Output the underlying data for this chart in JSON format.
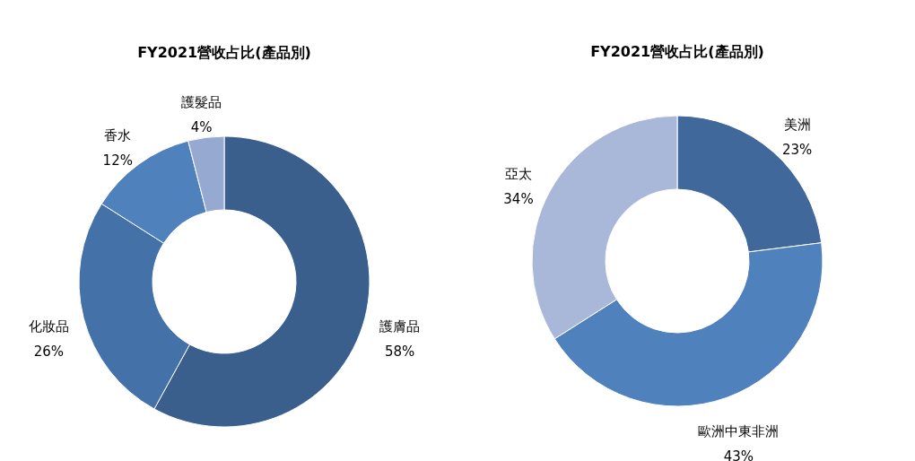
{
  "chart_data": [
    {
      "type": "donut",
      "title": "FY2021營收占比(產品別)",
      "categories": [
        "護膚品",
        "化妝品",
        "香水",
        "護髮品"
      ],
      "values": [
        58,
        26,
        12,
        4
      ],
      "value_labels": [
        "58%",
        "26%",
        "12%",
        "4%"
      ],
      "colors": [
        "#3b5f8c",
        "#4472a8",
        "#4f81bd",
        "#95a9d1"
      ]
    },
    {
      "type": "donut",
      "title": "FY2021營收占比(產品別)",
      "categories": [
        "美洲",
        "歐洲中東非洲",
        "亞太"
      ],
      "values": [
        23,
        43,
        34
      ],
      "value_labels": [
        "23%",
        "43%",
        "34%"
      ],
      "colors": [
        "#41689a",
        "#4f81bd",
        "#a9b8d8"
      ]
    }
  ]
}
